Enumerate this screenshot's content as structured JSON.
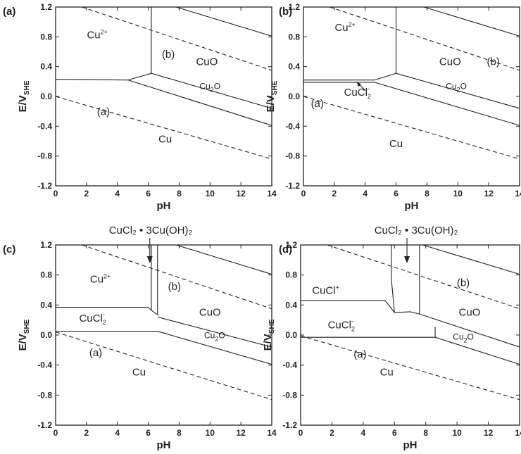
{
  "axes": {
    "x_label": "pH",
    "y_label_main": "E/V",
    "y_label_sub": "SHE",
    "x_ticks": [
      "0",
      "2",
      "4",
      "6",
      "8",
      "10",
      "12",
      "14"
    ],
    "y_ticks": [
      "1.2",
      "0.8",
      "0.4",
      "0.0",
      "-0.4",
      "-0.8",
      "-1.2"
    ]
  },
  "panels": [
    {
      "label": "(a)",
      "regions": [
        {
          "text": "Cu",
          "sup": "2+"
        },
        {
          "text": "CuO"
        },
        {
          "text": "Cu",
          "sub": "2",
          "tail": "O"
        },
        {
          "text": "Cu"
        },
        {
          "text": "(a)"
        },
        {
          "text": "(b)"
        }
      ]
    },
    {
      "label": "(b)",
      "regions": [
        {
          "text": "Cu",
          "sup": "2+"
        },
        {
          "text": "CuO"
        },
        {
          "text": "Cu",
          "sub": "2",
          "tail": "O"
        },
        {
          "text": "CuCl",
          "sub": "2",
          "sup": "-"
        },
        {
          "text": "Cu"
        },
        {
          "text": "(a)"
        },
        {
          "text": "(b)"
        }
      ]
    },
    {
      "label": "(c)",
      "top_label": "CuCl₂ • 3Cu(OH)₂",
      "regions": [
        {
          "text": "Cu",
          "sup": "2+"
        },
        {
          "text": "CuO"
        },
        {
          "text": "Cu",
          "sub": "2",
          "tail": "O"
        },
        {
          "text": "CuCl",
          "sub": "2",
          "sup": "-"
        },
        {
          "text": "Cu"
        },
        {
          "text": "(a)"
        },
        {
          "text": "(b)"
        }
      ]
    },
    {
      "label": "(d)",
      "top_label": "CuCl₂ • 3Cu(OH)₂",
      "regions": [
        {
          "text": "CuCl",
          "sup": "+"
        },
        {
          "text": "CuO"
        },
        {
          "text": "Cu",
          "sub": "2",
          "tail": "O"
        },
        {
          "text": "CuCl",
          "sub": "2",
          "sup": "-"
        },
        {
          "text": "Cu"
        },
        {
          "text": "(a)"
        },
        {
          "text": "(b)"
        }
      ]
    }
  ]
}
